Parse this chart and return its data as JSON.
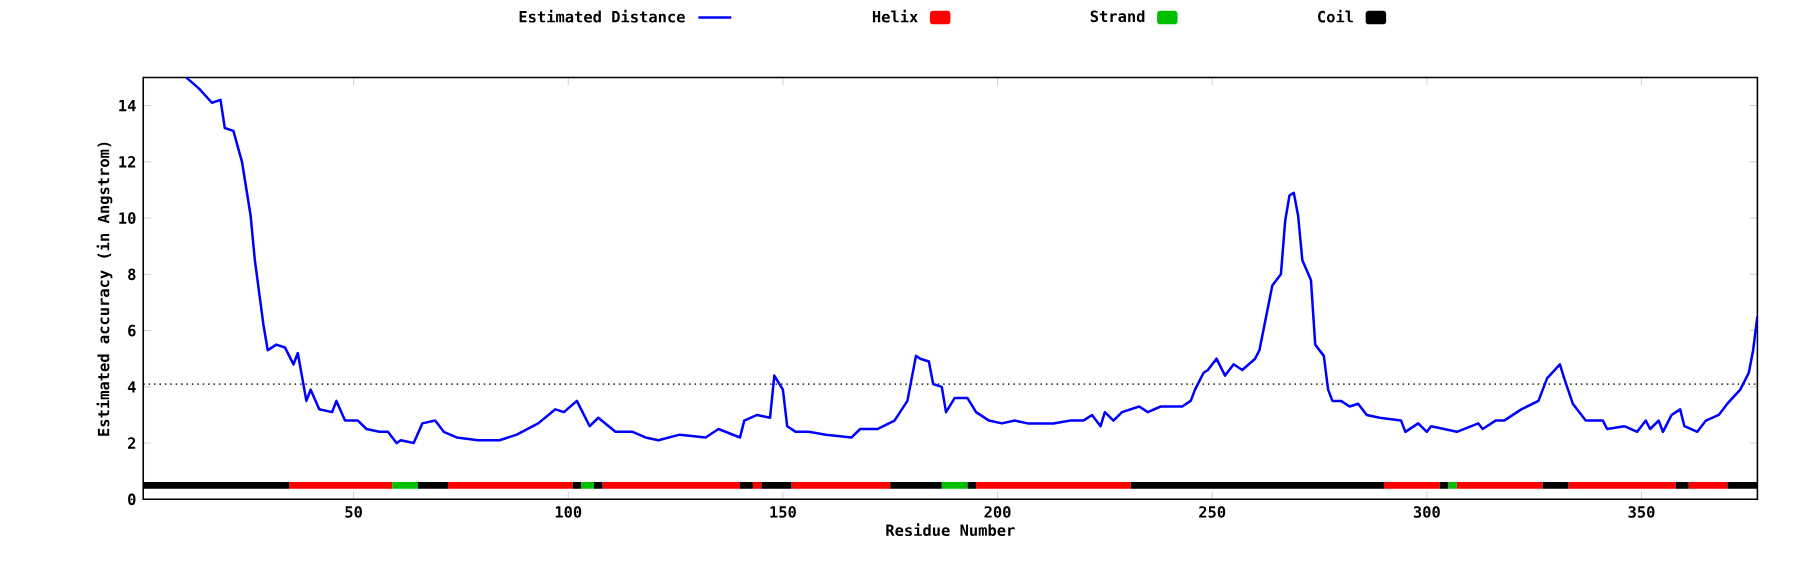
{
  "chart_data": {
    "type": "line",
    "xlabel": "Residue Number",
    "ylabel": "Estimated accuracy (in Angstrom)",
    "xlim": [
      1,
      377
    ],
    "ylim": [
      0,
      15
    ],
    "xticks": [
      50,
      100,
      150,
      200,
      250,
      300,
      350
    ],
    "yticks": [
      0,
      2,
      4,
      6,
      8,
      10,
      12,
      14
    ],
    "legend": "top",
    "line_style": "solid",
    "ref_lines": [
      {
        "axis": "y",
        "value": 4.1,
        "color": "#000000",
        "line_style": "dotted"
      }
    ],
    "series": [
      {
        "name": "Estimated Distance",
        "color": "#0000ff",
        "marker": "none",
        "x": [
          11,
          14,
          17,
          19,
          20,
          22,
          24,
          26,
          27,
          29,
          30,
          32,
          34,
          36,
          37,
          39,
          40,
          42,
          45,
          46,
          48,
          51,
          53,
          56,
          58,
          60,
          61,
          64,
          66,
          69,
          71,
          74,
          79,
          84,
          88,
          93,
          97,
          99,
          102,
          105,
          107,
          111,
          115,
          118,
          121,
          126,
          132,
          135,
          140,
          141,
          144,
          147,
          148,
          150,
          151,
          153,
          156,
          160,
          166,
          168,
          172,
          176,
          179,
          181,
          182,
          184,
          185,
          187,
          188,
          190,
          193,
          195,
          198,
          201,
          204,
          207,
          213,
          217,
          220,
          222,
          224,
          225,
          227,
          229,
          233,
          235,
          238,
          243,
          245,
          246,
          248,
          249,
          251,
          253,
          255,
          257,
          260,
          261,
          264,
          266,
          267,
          268,
          269,
          270,
          271,
          273,
          274,
          276,
          277,
          278,
          280,
          282,
          284,
          286,
          289,
          294,
          295,
          298,
          300,
          301,
          304,
          307,
          312,
          313,
          316,
          318,
          319,
          322,
          326,
          328,
          331,
          332,
          334,
          337,
          341,
          342,
          346,
          349,
          351,
          352,
          354,
          355,
          357,
          359,
          360,
          363,
          365,
          368,
          370,
          373,
          375,
          376,
          377
        ],
        "values": [
          15.0,
          14.6,
          14.1,
          14.2,
          13.2,
          13.1,
          12.0,
          10.1,
          8.5,
          6.2,
          5.3,
          5.5,
          5.4,
          4.8,
          5.2,
          3.5,
          3.9,
          3.2,
          3.1,
          3.5,
          2.8,
          2.8,
          2.5,
          2.4,
          2.4,
          2.0,
          2.1,
          2.0,
          2.7,
          2.8,
          2.4,
          2.2,
          2.1,
          2.1,
          2.3,
          2.7,
          3.2,
          3.1,
          3.5,
          2.6,
          2.9,
          2.4,
          2.4,
          2.2,
          2.1,
          2.3,
          2.2,
          2.5,
          2.2,
          2.8,
          3.0,
          2.9,
          4.4,
          3.9,
          2.6,
          2.4,
          2.4,
          2.3,
          2.2,
          2.5,
          2.5,
          2.8,
          3.5,
          5.1,
          5.0,
          4.9,
          4.1,
          4.0,
          3.1,
          3.6,
          3.6,
          3.1,
          2.8,
          2.7,
          2.8,
          2.7,
          2.7,
          2.8,
          2.8,
          3.0,
          2.6,
          3.1,
          2.8,
          3.1,
          3.3,
          3.1,
          3.3,
          3.3,
          3.5,
          3.9,
          4.5,
          4.6,
          5.0,
          4.4,
          4.8,
          4.6,
          5.0,
          5.3,
          7.6,
          8.0,
          9.9,
          10.8,
          10.9,
          10.1,
          8.5,
          7.8,
          5.5,
          5.1,
          3.9,
          3.5,
          3.5,
          3.3,
          3.4,
          3.0,
          2.9,
          2.8,
          2.4,
          2.7,
          2.4,
          2.6,
          2.5,
          2.4,
          2.7,
          2.5,
          2.8,
          2.8,
          2.9,
          3.2,
          3.5,
          4.3,
          4.8,
          4.3,
          3.4,
          2.8,
          2.8,
          2.5,
          2.6,
          2.4,
          2.8,
          2.5,
          2.8,
          2.4,
          3.0,
          3.2,
          2.6,
          2.4,
          2.8,
          3.0,
          3.4,
          3.9,
          4.5,
          5.3,
          6.5
        ]
      },
      {
        "name": "Helix",
        "color": "#ff0000",
        "x": [
          35,
          59,
          62,
          72,
          101,
          104,
          108,
          140,
          141,
          143,
          145,
          148,
          152,
          175,
          185,
          195,
          231,
          260,
          290,
          303,
          305,
          307,
          327,
          330,
          333,
          358,
          360,
          361,
          370
        ],
        "values": [
          0.5,
          0.5,
          null,
          0.5,
          0.5,
          null,
          0.5,
          0.5,
          null,
          0.5,
          0.5,
          null,
          0.5,
          0.5,
          null,
          0.5,
          0.5,
          null,
          0.5,
          0.5,
          null,
          0.5,
          0.5,
          null,
          0.5,
          0.5,
          null,
          0.5,
          0.5
        ]
      },
      {
        "name": "Strand",
        "color": "#00c000",
        "x": [
          59,
          65,
          80,
          103,
          106,
          150,
          187,
          193,
          250,
          305,
          307
        ],
        "values": [
          0.5,
          0.5,
          null,
          0.5,
          0.5,
          null,
          0.5,
          0.5,
          null,
          0.5,
          0.5
        ]
      },
      {
        "name": "Coil",
        "color": "#000000",
        "x": [
          1,
          35,
          50,
          65,
          72,
          90,
          101,
          103,
          104,
          106,
          108,
          120,
          140,
          143,
          144,
          145,
          152,
          170,
          175,
          187,
          190,
          193,
          195,
          210,
          231,
          290,
          296,
          303,
          305,
          306,
          327,
          333,
          345,
          358,
          361,
          365,
          370,
          377
        ],
        "values": [
          0.5,
          0.5,
          null,
          0.5,
          0.5,
          null,
          0.5,
          0.5,
          null,
          0.5,
          0.5,
          null,
          0.5,
          0.5,
          null,
          0.5,
          0.5,
          null,
          0.5,
          0.5,
          null,
          0.5,
          0.5,
          null,
          0.5,
          0.5,
          null,
          0.5,
          0.5,
          null,
          0.5,
          0.5,
          null,
          0.5,
          0.5,
          null,
          0.5,
          0.5
        ]
      }
    ]
  }
}
